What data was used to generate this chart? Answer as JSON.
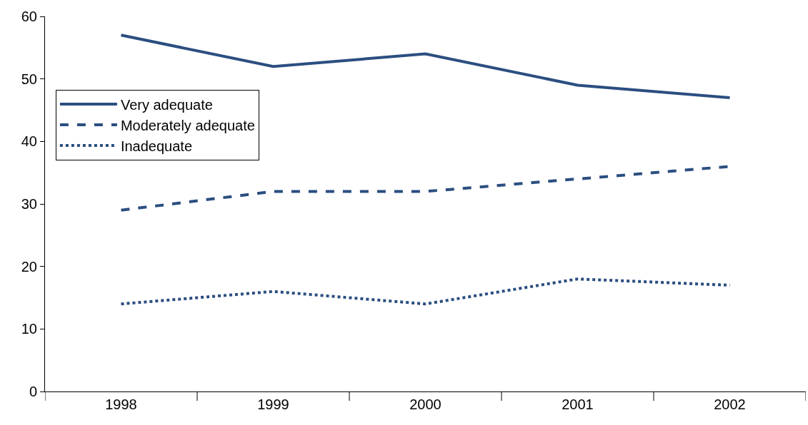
{
  "chart_data": {
    "type": "line",
    "categories": [
      "1998",
      "1999",
      "2000",
      "2001",
      "2002"
    ],
    "series": [
      {
        "name": "Very adequate",
        "color": "#2b4e80",
        "line_style": "solid",
        "values": [
          57,
          52,
          54,
          49,
          47
        ]
      },
      {
        "name": "Moderately adequate",
        "color": "#2b4e80",
        "line_style": "dashed",
        "values": [
          29,
          32,
          32,
          34,
          36
        ]
      },
      {
        "name": "Inadequate",
        "color": "#2b4e80",
        "line_style": "dotted",
        "values": [
          14,
          16,
          14,
          18,
          17
        ]
      }
    ],
    "ylim": [
      0,
      60
    ],
    "yticks": [
      0,
      10,
      20,
      30,
      40,
      50,
      60
    ],
    "grid": false,
    "legend": "top left",
    "marker": "none"
  }
}
